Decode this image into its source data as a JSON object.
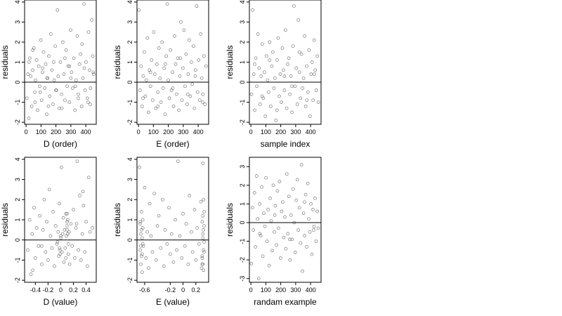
{
  "figure": {
    "panels": [
      {
        "xlabel": "D (order)",
        "ylabel": "residuals"
      },
      {
        "xlabel": "E (order)",
        "ylabel": "residuals"
      },
      {
        "xlabel": "sample index",
        "ylabel": "residuals"
      },
      {
        "xlabel": "D (value)",
        "ylabel": "residuals"
      },
      {
        "xlabel": "E (value)",
        "ylabel": "residuals"
      },
      {
        "xlabel": "randam example",
        "ylabel": "residuals"
      }
    ]
  },
  "colors": {
    "point": "#4d4d4d",
    "axis": "#000000",
    "background": "#ffffff"
  },
  "chart_data": [
    {
      "type": "scatter",
      "xlabel": "D (order)",
      "ylabel": "residuals",
      "xlim": [
        -10,
        470
      ],
      "ylim": [
        -2.1,
        4.1
      ],
      "xticks": [
        0,
        100,
        200,
        300,
        400
      ],
      "yticks": [
        -2,
        -1,
        0,
        1,
        2,
        3,
        4
      ],
      "hline": 0,
      "grid": false,
      "legend": false,
      "x": [
        5,
        12,
        18,
        25,
        31,
        38,
        44,
        52,
        58,
        63,
        70,
        77,
        85,
        91,
        98,
        104,
        110,
        117,
        124,
        131,
        138,
        145,
        152,
        159,
        166,
        173,
        180,
        188,
        195,
        203,
        210,
        215,
        222,
        230,
        238,
        246,
        253,
        260,
        268,
        275,
        282,
        290,
        298,
        305,
        312,
        320,
        328,
        335,
        343,
        350,
        358,
        365,
        372,
        380,
        388,
        395,
        402,
        410,
        418,
        425,
        432,
        440,
        447,
        452,
        20,
        60,
        110,
        150,
        200,
        260,
        300,
        350,
        390,
        430,
        45,
        95,
        140,
        185,
        240,
        290,
        330,
        375,
        415,
        450
      ],
      "y": [
        -0.8,
        0.4,
        -1.8,
        1.2,
        0.3,
        -1.2,
        0.6,
        1.7,
        -0.5,
        0.1,
        1.1,
        -1.4,
        0.8,
        -0.2,
        2.1,
        -0.9,
        0.5,
        1.5,
        -0.3,
        0.9,
        -1.6,
        0.2,
        1.3,
        -0.7,
        2.4,
        0.6,
        -1.1,
        0.1,
        1.8,
        -0.4,
        3.6,
        0.3,
        -1.3,
        1.0,
        -0.6,
        2.0,
        0.4,
        -0.9,
        1.6,
        -0.2,
        0.8,
        -1.0,
        2.6,
        0.5,
        -0.3,
        1.2,
        -1.4,
        0.1,
        2.3,
        -0.6,
        0.9,
        1.4,
        -1.2,
        0.2,
        3.9,
        -0.4,
        1.0,
        -0.8,
        2.5,
        0.6,
        -0.3,
        3.1,
        1.3,
        0.4,
        1.0,
        -1.0,
        0.7,
        -1.2,
        -0.4,
        1.2,
        0.2,
        -0.8,
        0.7,
        -1.1,
        1.6,
        -0.5,
        0.2,
        1.0,
        -1.3,
        0.8,
        -0.2,
        1.9,
        -1.0,
        0.5
      ]
    },
    {
      "type": "scatter",
      "xlabel": "E (order)",
      "ylabel": "residuals",
      "xlim": [
        -10,
        470
      ],
      "ylim": [
        -2.1,
        4.1
      ],
      "xticks": [
        0,
        100,
        200,
        300,
        400
      ],
      "yticks": [
        -2,
        -1,
        0,
        1,
        2,
        3,
        4
      ],
      "hline": 0,
      "grid": false,
      "legend": false,
      "x": [
        3,
        10,
        17,
        24,
        32,
        39,
        46,
        53,
        60,
        67,
        74,
        81,
        88,
        95,
        102,
        109,
        116,
        123,
        130,
        137,
        144,
        151,
        158,
        165,
        172,
        179,
        186,
        193,
        200,
        207,
        214,
        221,
        228,
        235,
        242,
        249,
        256,
        263,
        270,
        277,
        284,
        291,
        298,
        305,
        312,
        319,
        326,
        333,
        340,
        347,
        354,
        361,
        368,
        375,
        382,
        389,
        396,
        403,
        410,
        417,
        424,
        431,
        438,
        445,
        452,
        30,
        80,
        130,
        180,
        230,
        280,
        330,
        380,
        430
      ],
      "y": [
        3.6,
        -0.4,
        0.8,
        -1.2,
        0.3,
        1.5,
        -0.7,
        0.1,
        2.2,
        -1.5,
        0.6,
        -0.2,
        1.1,
        -0.9,
        2.5,
        0.4,
        -1.3,
        0.9,
        -0.5,
        1.7,
        0.2,
        -1.0,
        2.0,
        -0.3,
        0.7,
        -1.6,
        1.3,
        3.9,
        0.1,
        -0.8,
        1.6,
        -0.4,
        0.5,
        -1.2,
        2.3,
        0.9,
        -0.6,
        1.2,
        -1.4,
        0.3,
        3.0,
        -0.9,
        0.7,
        2.6,
        -0.2,
        1.4,
        -1.1,
        0.4,
        2.1,
        -0.7,
        1.0,
        -0.1,
        1.8,
        -1.3,
        0.6,
        3.8,
        -0.5,
        1.1,
        -0.9,
        2.4,
        0.2,
        -0.6,
        1.3,
        -1.1,
        0.8,
        -0.8,
        0.5,
        -1.2,
        0.9,
        -0.3,
        1.2,
        -0.6,
        0.3,
        -1.0
      ]
    },
    {
      "type": "scatter",
      "xlabel": "sample index",
      "ylabel": "residuals",
      "xlim": [
        -10,
        470
      ],
      "ylim": [
        -2.1,
        4.1
      ],
      "xticks": [
        0,
        100,
        200,
        300,
        400
      ],
      "yticks": [
        -2,
        -1,
        0,
        1,
        2,
        3,
        4
      ],
      "hline": 0,
      "grid": false,
      "legend": false,
      "x": [
        4,
        11,
        19,
        26,
        33,
        40,
        47,
        55,
        62,
        69,
        76,
        83,
        90,
        97,
        105,
        112,
        119,
        126,
        133,
        140,
        147,
        154,
        161,
        168,
        176,
        183,
        190,
        197,
        204,
        211,
        218,
        225,
        232,
        240,
        247,
        254,
        261,
        268,
        275,
        282,
        289,
        296,
        304,
        311,
        318,
        325,
        332,
        339,
        346,
        353,
        360,
        367,
        374,
        382,
        389,
        396,
        403,
        410,
        417,
        424,
        431,
        438,
        445,
        452,
        25,
        75,
        125,
        175,
        225,
        275,
        325,
        375,
        425
      ],
      "y": [
        -0.6,
        3.6,
        0.4,
        -1.4,
        1.2,
        -0.2,
        2.4,
        0.7,
        -1.1,
        0.3,
        1.9,
        -0.8,
        0.5,
        -1.7,
        1.3,
        0.1,
        -0.5,
        2.0,
        -1.2,
        0.8,
        1.5,
        -0.3,
        0.2,
        -1.9,
        1.1,
        2.2,
        -0.7,
        0.4,
        -1.0,
        1.7,
        0.6,
        -0.4,
        2.6,
        -1.3,
        0.9,
        1.2,
        -0.6,
        0.3,
        -1.5,
        1.8,
        3.8,
        -0.2,
        0.7,
        -1.1,
        3.1,
        0.5,
        -0.8,
        1.4,
        -0.3,
        0.2,
        2.3,
        -1.2,
        0.8,
        -0.5,
        1.6,
        -1.7,
        0.4,
        1.0,
        -0.9,
        2.1,
        0.6,
        -0.4,
        1.3,
        -1.0,
        0.9,
        -0.7,
        1.1,
        -1.4,
        0.3,
        -0.2,
        1.5,
        -0.9,
        0.4
      ]
    },
    {
      "type": "scatter",
      "xlabel": "D (value)",
      "ylabel": "residuals",
      "xlim": [
        -0.57,
        0.56
      ],
      "ylim": [
        -2.1,
        4.1
      ],
      "xticks": [
        -0.4,
        -0.2,
        0.0,
        0.2,
        0.4
      ],
      "yticks": [
        -2,
        -1,
        0,
        1,
        2,
        3,
        4
      ],
      "hline": 0,
      "grid": false,
      "legend": false,
      "x": [
        -0.52,
        -0.49,
        -0.47,
        -0.45,
        -0.42,
        -0.4,
        -0.38,
        -0.35,
        -0.33,
        -0.3,
        -0.28,
        -0.26,
        -0.24,
        -0.22,
        -0.2,
        -0.18,
        -0.16,
        -0.14,
        -0.12,
        -0.1,
        -0.08,
        -0.06,
        -0.04,
        -0.03,
        -0.02,
        -0.01,
        0.0,
        0.01,
        0.02,
        0.03,
        0.04,
        0.05,
        0.06,
        0.07,
        0.08,
        0.08,
        0.09,
        0.1,
        0.11,
        0.12,
        0.13,
        0.14,
        0.16,
        0.18,
        0.2,
        0.22,
        0.24,
        0.26,
        0.28,
        0.3,
        0.32,
        0.34,
        0.36,
        0.38,
        0.4,
        0.42,
        0.44,
        0.46,
        0.5,
        -0.05,
        0.12,
        -0.44,
        0.1,
        0.1,
        0.1,
        0.11,
        -0.02,
        -0.01,
        0.0,
        0.35,
        -0.3,
        0.25
      ],
      "y": [
        -0.5,
        1.0,
        -1.7,
        0.3,
        1.6,
        -0.9,
        0.6,
        -0.3,
        1.2,
        -1.2,
        0.5,
        2.0,
        -0.6,
        0.9,
        -1.0,
        2.5,
        0.2,
        -0.4,
        1.4,
        -1.3,
        0.7,
        -0.2,
        0.4,
        -0.8,
        1.8,
        -0.5,
        0.1,
        3.6,
        -0.6,
        0.3,
        1.1,
        -1.1,
        0.5,
        -0.4,
        1.3,
        -0.9,
        0.2,
        0.7,
        1.0,
        -0.7,
        0.4,
        -1.2,
        0.8,
        -0.3,
        1.5,
        -0.9,
        0.6,
        3.9,
        -0.5,
        2.2,
        -1.0,
        0.3,
        1.7,
        -0.6,
        0.9,
        -1.3,
        3.1,
        0.4,
        0.6,
        -0.1,
        -0.2,
        -1.5,
        0.5,
        0.9,
        1.3,
        0.3,
        -0.4,
        -0.7,
        0.2,
        2.4,
        -0.3,
        0.8
      ]
    },
    {
      "type": "scatter",
      "xlabel": "E (value)",
      "ylabel": "residuals",
      "xlim": [
        -0.72,
        0.4
      ],
      "ylim": [
        -2.1,
        4.1
      ],
      "xticks": [
        -0.6,
        -0.2,
        0.0,
        0.2
      ],
      "yticks": [
        -2,
        -1,
        0,
        1,
        2,
        3,
        4
      ],
      "hline": 0,
      "grid": false,
      "legend": false,
      "x": [
        -0.68,
        -0.67,
        -0.67,
        -0.66,
        -0.66,
        -0.65,
        -0.65,
        -0.64,
        -0.64,
        -0.63,
        -0.63,
        -0.62,
        -0.6,
        -0.58,
        -0.56,
        -0.54,
        -0.52,
        -0.5,
        -0.48,
        -0.45,
        -0.42,
        -0.4,
        -0.38,
        -0.35,
        -0.32,
        -0.3,
        -0.28,
        -0.25,
        -0.22,
        -0.2,
        -0.18,
        -0.15,
        -0.12,
        -0.1,
        -0.08,
        -0.05,
        -0.02,
        0.0,
        0.03,
        0.05,
        0.08,
        0.1,
        0.13,
        0.15,
        0.18,
        0.2,
        0.22,
        0.25,
        0.28,
        0.29,
        0.3,
        0.3,
        0.31,
        0.31,
        0.31,
        0.32,
        0.32,
        0.32,
        0.33,
        0.33,
        0.33,
        0.3,
        0.31,
        0.32,
        0.33,
        0.31,
        0.3,
        -0.66,
        -0.65,
        -0.64,
        -0.67,
        -0.63
      ],
      "y": [
        3.6,
        -0.5,
        0.8,
        -1.2,
        0.3,
        1.4,
        -0.8,
        0.1,
        -1.6,
        0.6,
        1.0,
        -0.3,
        2.6,
        -0.9,
        0.4,
        -1.4,
        1.8,
        0.2,
        -0.6,
        2.3,
        -1.0,
        0.7,
        1.2,
        -0.4,
        2.0,
        -1.3,
        0.5,
        -0.2,
        1.6,
        -0.7,
        0.3,
        -1.1,
        1.0,
        -0.5,
        3.9,
        0.2,
        -0.9,
        1.3,
        -0.3,
        0.8,
        -1.2,
        2.2,
        0.4,
        -0.6,
        1.5,
        -1.0,
        0.6,
        -0.2,
        1.9,
        -1.4,
        0.9,
        -0.8,
        0.3,
        -1.2,
        1.2,
        -0.5,
        0.5,
        -1.5,
        1.4,
        -0.1,
        0.7,
        -0.9,
        3.8,
        2.0,
        -0.6,
        0.1,
        -1.2,
        -0.3,
        0.5,
        -0.7,
        0.9,
        -0.2
      ]
    },
    {
      "type": "scatter",
      "xlabel": "randam example",
      "ylabel": "residuals",
      "xlim": [
        -10,
        470
      ],
      "ylim": [
        -3.2,
        3.5
      ],
      "xticks": [
        0,
        100,
        200,
        300,
        400
      ],
      "yticks": [
        -3,
        -2,
        -1,
        0,
        1,
        2,
        3
      ],
      "hline": 0,
      "grid": false,
      "legend": false,
      "x": [
        3,
        10,
        17,
        24,
        31,
        38,
        45,
        52,
        59,
        66,
        73,
        80,
        87,
        94,
        101,
        108,
        115,
        122,
        129,
        136,
        143,
        150,
        157,
        164,
        171,
        178,
        185,
        192,
        199,
        206,
        213,
        220,
        227,
        234,
        241,
        248,
        255,
        262,
        269,
        276,
        283,
        290,
        297,
        304,
        311,
        318,
        325,
        332,
        339,
        346,
        353,
        360,
        367,
        374,
        381,
        388,
        395,
        402,
        409,
        416,
        423,
        430,
        437,
        444,
        451,
        60,
        160,
        260,
        360,
        420
      ],
      "y": [
        -2.2,
        0.8,
        -0.4,
        1.6,
        -1.3,
        2.5,
        0.2,
        -3.0,
        1.0,
        -0.7,
        1.9,
        -1.8,
        0.5,
        -0.2,
        2.4,
        -1.0,
        0.7,
        -2.3,
        1.3,
        0.1,
        -1.5,
        2.0,
        -0.5,
        0.9,
        -1.2,
        1.7,
        -0.3,
        2.2,
        -1.9,
        0.6,
        1.1,
        -0.8,
        0.3,
        -1.4,
        2.6,
        -0.6,
        1.4,
        -2.0,
        0.4,
        -0.9,
        1.8,
        0.0,
        -1.6,
        1.2,
        2.3,
        -0.4,
        0.8,
        -1.1,
        3.1,
        -2.6,
        0.5,
        -0.7,
        1.5,
        -1.3,
        2.1,
        0.2,
        -0.5,
        1.0,
        -1.7,
        0.7,
        -0.2,
        1.3,
        -1.0,
        0.6,
        -0.3,
        -0.6,
        0.4,
        -0.9,
        1.1,
        -0.4
      ]
    }
  ]
}
